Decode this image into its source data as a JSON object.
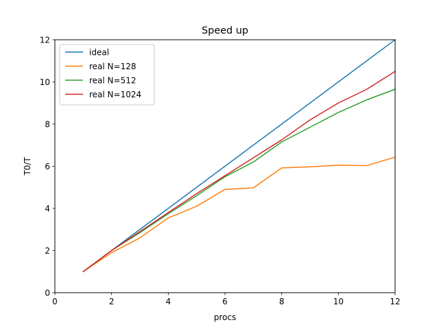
{
  "chart_data": {
    "type": "line",
    "title": "Speed up",
    "xlabel": "procs",
    "ylabel": "T0/T",
    "xlim": [
      0,
      12
    ],
    "ylim": [
      0,
      12
    ],
    "xticks": [
      "0",
      "2",
      "4",
      "6",
      "8",
      "10",
      "12"
    ],
    "yticks": [
      "0",
      "2",
      "4",
      "6",
      "8",
      "10",
      "12"
    ],
    "grid": false,
    "legend_position": "top-left",
    "x": [
      1,
      2,
      3,
      4,
      5,
      6,
      7,
      8,
      9,
      10,
      11,
      12
    ],
    "series": [
      {
        "name": "ideal",
        "color": "#1f77b4",
        "values": [
          1,
          2,
          3,
          4,
          5,
          6,
          7,
          8,
          9,
          10,
          11,
          12
        ]
      },
      {
        "name": "real N=128",
        "color": "#ff7f0e",
        "values": [
          1.0,
          1.9,
          2.6,
          3.55,
          4.1,
          4.9,
          4.97,
          5.92,
          5.97,
          6.05,
          6.03,
          6.43
        ]
      },
      {
        "name": "real N=512",
        "color": "#2ca02c",
        "values": [
          1.0,
          2.0,
          2.85,
          3.75,
          4.6,
          5.5,
          6.2,
          7.15,
          7.85,
          8.55,
          9.15,
          9.65
        ]
      },
      {
        "name": "real N=1024",
        "color": "#d62728",
        "values": [
          1.0,
          2.0,
          2.9,
          3.8,
          4.7,
          5.55,
          6.4,
          7.25,
          8.2,
          9.0,
          9.65,
          10.5
        ]
      }
    ]
  }
}
